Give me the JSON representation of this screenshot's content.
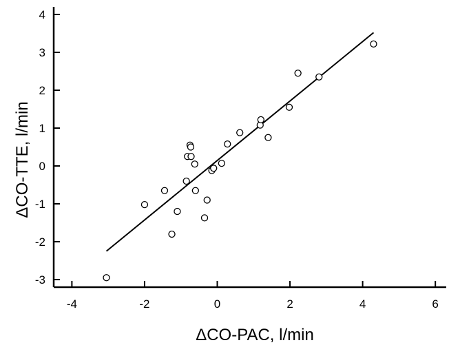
{
  "chart_data": {
    "type": "scatter",
    "title": "",
    "xlabel": "ΔCO-PAC, l/min",
    "ylabel": "ΔCO-TTE, l/min",
    "xlim": [
      -4.5,
      6.3
    ],
    "ylim": [
      -3.2,
      4.2
    ],
    "xticks": [
      -4,
      -2,
      0,
      2,
      4,
      6
    ],
    "yticks": [
      -3,
      -2,
      -1,
      0,
      1,
      2,
      3,
      4
    ],
    "xtick_labels": [
      "-4",
      "-2",
      "0",
      "2",
      "4",
      "6"
    ],
    "ytick_labels": [
      "-3",
      "-2",
      "-1",
      "0",
      "1",
      "2",
      "3",
      "4"
    ],
    "grid": false,
    "legend": "none",
    "marker": "open-circle",
    "points": [
      {
        "x": -3.05,
        "y": -2.95
      },
      {
        "x": -2.0,
        "y": -1.02
      },
      {
        "x": -1.45,
        "y": -0.65
      },
      {
        "x": -1.1,
        "y": -1.2
      },
      {
        "x": -1.25,
        "y": -1.8
      },
      {
        "x": -0.85,
        "y": -0.4
      },
      {
        "x": -0.82,
        "y": 0.25
      },
      {
        "x": -0.75,
        "y": 0.55
      },
      {
        "x": -0.73,
        "y": 0.5
      },
      {
        "x": -0.72,
        "y": 0.25
      },
      {
        "x": -0.62,
        "y": 0.05
      },
      {
        "x": -0.6,
        "y": -0.65
      },
      {
        "x": -0.35,
        "y": -1.37
      },
      {
        "x": -0.28,
        "y": -0.9
      },
      {
        "x": -0.15,
        "y": -0.12
      },
      {
        "x": -0.1,
        "y": -0.06
      },
      {
        "x": 0.12,
        "y": 0.07
      },
      {
        "x": 0.28,
        "y": 0.58
      },
      {
        "x": 0.62,
        "y": 0.88
      },
      {
        "x": 1.18,
        "y": 1.08
      },
      {
        "x": 1.2,
        "y": 1.22
      },
      {
        "x": 1.4,
        "y": 0.75
      },
      {
        "x": 1.98,
        "y": 1.55
      },
      {
        "x": 2.22,
        "y": 2.45
      },
      {
        "x": 2.8,
        "y": 2.35
      },
      {
        "x": 4.3,
        "y": 3.22
      }
    ],
    "regression_line": {
      "x": [
        -3.05,
        4.3
      ],
      "y": [
        -2.25,
        3.52
      ]
    }
  }
}
